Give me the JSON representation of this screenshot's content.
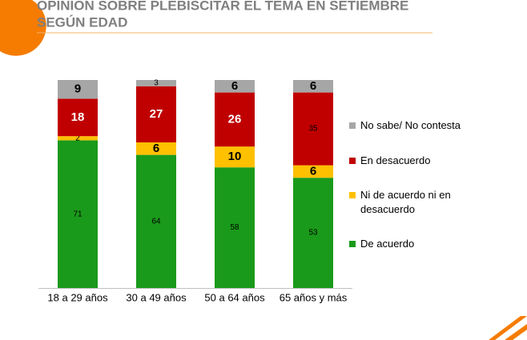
{
  "chart_data": {
    "type": "stacked_bar",
    "title": "OPINIÓN SOBRE PLEBISCITAR EL TEMA EN SETIEMBRE",
    "subtitle": "SEGÚN EDAD",
    "categories": [
      "18 a 29 años",
      "30 a 49 años",
      "50 a 64 años",
      "65 años y más"
    ],
    "series": [
      {
        "name": "De acuerdo",
        "color": "#1a9a1a",
        "label_color": "#ffffff",
        "values": [
          71,
          64,
          58,
          53
        ]
      },
      {
        "name": "Ni de acuerdo ni en desacuerdo",
        "color": "#ffc000",
        "label_color": "#000000",
        "values": [
          2,
          6,
          10,
          6
        ]
      },
      {
        "name": "En desacuerdo",
        "color": "#c00000",
        "label_color": "#ffffff",
        "values": [
          18,
          27,
          26,
          35
        ]
      },
      {
        "name": "No sabe/ No contesta",
        "color": "#a6a6a6",
        "label_color": "#000000",
        "values": [
          9,
          3,
          6,
          6
        ]
      }
    ],
    "legend": "right"
  }
}
